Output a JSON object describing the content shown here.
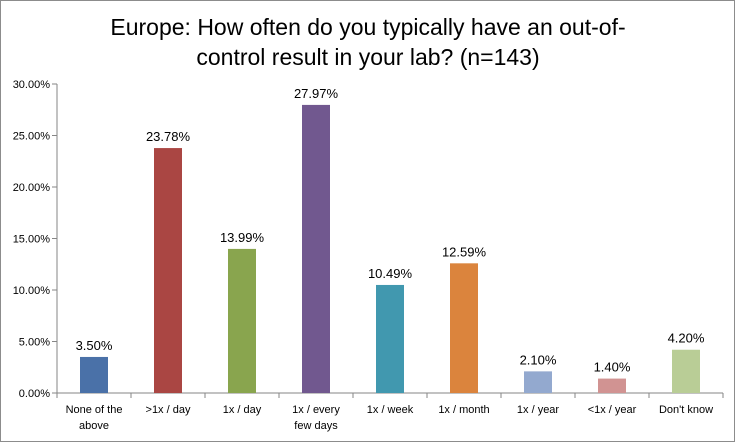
{
  "chart_data": {
    "type": "bar",
    "title_lines": [
      "Europe: How often do you typically have an out-of-",
      "control result in your lab? (n=143)"
    ],
    "categories": [
      [
        "None of the",
        "above"
      ],
      [
        ">1x / day"
      ],
      [
        "1x / day"
      ],
      [
        "1x / every",
        "few days"
      ],
      [
        "1x / week"
      ],
      [
        "1x / month"
      ],
      [
        "1x /  year"
      ],
      [
        "<1x /  year"
      ],
      [
        "Don't know"
      ]
    ],
    "values": [
      3.5,
      23.78,
      13.99,
      27.97,
      10.49,
      12.59,
      2.1,
      1.4,
      4.2
    ],
    "value_labels": [
      "3.50%",
      "23.78%",
      "13.99%",
      "27.97%",
      "10.49%",
      "12.59%",
      "2.10%",
      "1.40%",
      "4.20%"
    ],
    "colors": [
      "#4a71a8",
      "#aa4643",
      "#89a54e",
      "#71588f",
      "#4198af",
      "#db843d",
      "#93a9cf",
      "#d19392",
      "#b9cd96"
    ],
    "ylim": [
      0,
      30
    ],
    "yticks": [
      0,
      5,
      10,
      15,
      20,
      25,
      30
    ],
    "ytick_labels": [
      "0.00%",
      "5.00%",
      "10.00%",
      "15.00%",
      "20.00%",
      "25.00%",
      "30.00%"
    ],
    "xlabel": "",
    "ylabel": "",
    "grid": false,
    "legend": "none"
  }
}
